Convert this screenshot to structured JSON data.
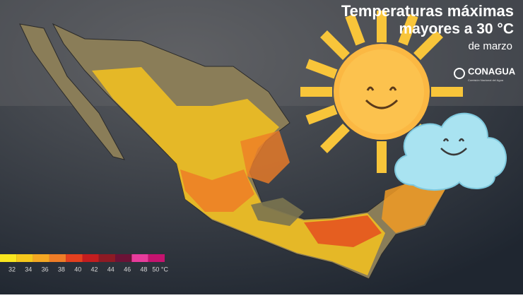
{
  "header": {
    "title": "Temperaturas máximas",
    "subtitle": "mayores a 30 °C",
    "date": "de marzo"
  },
  "logo": {
    "name": "CONAGUA",
    "caption": "Comisión Nacional del Agua"
  },
  "legend": {
    "colors": [
      "#f9e61f",
      "#f6c81c",
      "#f5a823",
      "#ef7d27",
      "#e4401f",
      "#c41d1f",
      "#8e1a24",
      "#6b1236",
      "#e83c9c",
      "#c5136f"
    ],
    "ticks": [
      32,
      34,
      36,
      38,
      40,
      42,
      44,
      46,
      48,
      {
        "value": 50,
        "label": "50 °C"
      }
    ]
  }
}
